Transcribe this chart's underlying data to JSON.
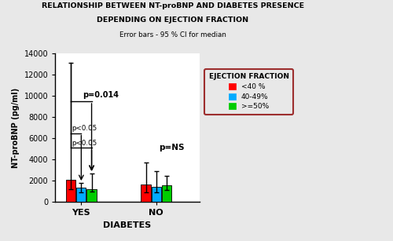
{
  "title_line1": "RELATIONSHIP BETWEEN NT-proBNP AND DIABETES PRESENCE",
  "title_line2": "DEPENDING ON EJECTION FRACTION",
  "subtitle": "Error bars - 95 % CI for median",
  "xlabel": "DIABETES",
  "ylabel": "NT-proBNP (pg/ml)",
  "ylim": [
    0,
    14000
  ],
  "yticks": [
    0,
    2000,
    4000,
    6000,
    8000,
    10000,
    12000,
    14000
  ],
  "groups": [
    "YES",
    "NO"
  ],
  "categories": [
    "<40 %",
    "40-49%",
    ">=50%"
  ],
  "bar_colors": [
    "#ff0000",
    "#00aaff",
    "#00cc00"
  ],
  "bar_values": {
    "YES": [
      2100,
      1350,
      1200
    ],
    "NO": [
      1650,
      1450,
      1550
    ]
  },
  "error_low": {
    "YES": [
      900,
      400,
      200
    ],
    "NO": [
      700,
      500,
      400
    ]
  },
  "error_high": {
    "YES": [
      13100,
      1800,
      2700
    ],
    "NO": [
      3700,
      2900,
      2500
    ]
  },
  "legend_title": "EJECTION FRACTION",
  "legend_labels": [
    "<40 %",
    "40-49%",
    ">=50%"
  ],
  "annotation_p014": "p=0.014",
  "annotation_p05_1": "p<0.05",
  "annotation_p05_2": "p<0.05",
  "annotation_pNS": "p=NS",
  "bar_width": 0.18,
  "group_centers": [
    1.0,
    2.3
  ],
  "bg_color": "#ffffff",
  "fig_bg_color": "#e8e8e8"
}
